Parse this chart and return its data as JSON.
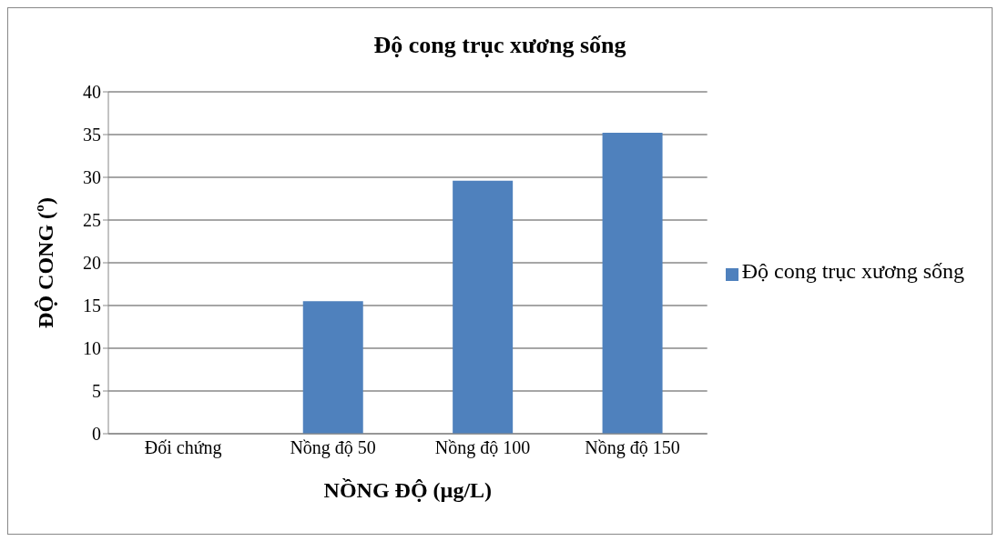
{
  "chart_data": {
    "type": "bar",
    "title": "Độ cong trục xương sống",
    "xlabel": "NỒNG ĐỘ (µg/L)",
    "ylabel": "ĐỘ CONG (º)",
    "categories": [
      "Đối chứng",
      "Nồng độ 50",
      "Nồng độ 100",
      "Nồng độ 150"
    ],
    "series": [
      {
        "name": "Độ cong trục xương sống",
        "color": "#4f81bd",
        "values": [
          0,
          15.5,
          29.6,
          35.2
        ]
      }
    ],
    "ylim": [
      0,
      40
    ],
    "yticks": [
      0,
      5,
      10,
      15,
      20,
      25,
      30,
      35,
      40
    ],
    "grid": "y",
    "legend": "right"
  }
}
